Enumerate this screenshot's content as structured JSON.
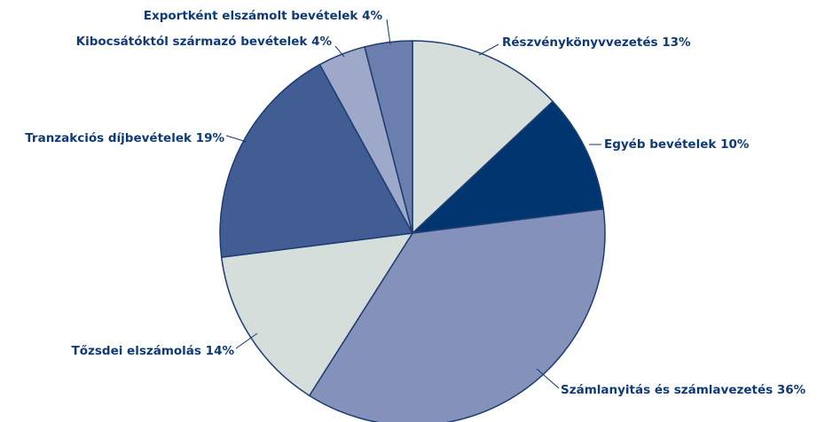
{
  "chart_data": {
    "type": "pie",
    "categories": [
      "Részvénykönyvvezetés",
      "Egyéb bevételek",
      "Számlanyitás és számlavezetés",
      "Tőzsdei elszámolás",
      "Tranzakciós díjbevételek",
      "Kibocsátóktól származó bevételek",
      "Exportként elszámolt bevételek"
    ],
    "values": [
      13,
      10,
      36,
      14,
      19,
      4,
      4
    ],
    "value_labels": [
      "13%",
      "10%",
      "36%",
      "14%",
      "19%",
      "4%",
      "4%"
    ],
    "colors": [
      "#d5dedb",
      "#00366f",
      "#8491bb",
      "#d5dedb",
      "#425c94",
      "#9ea8c9",
      "#6a7fad"
    ]
  }
}
